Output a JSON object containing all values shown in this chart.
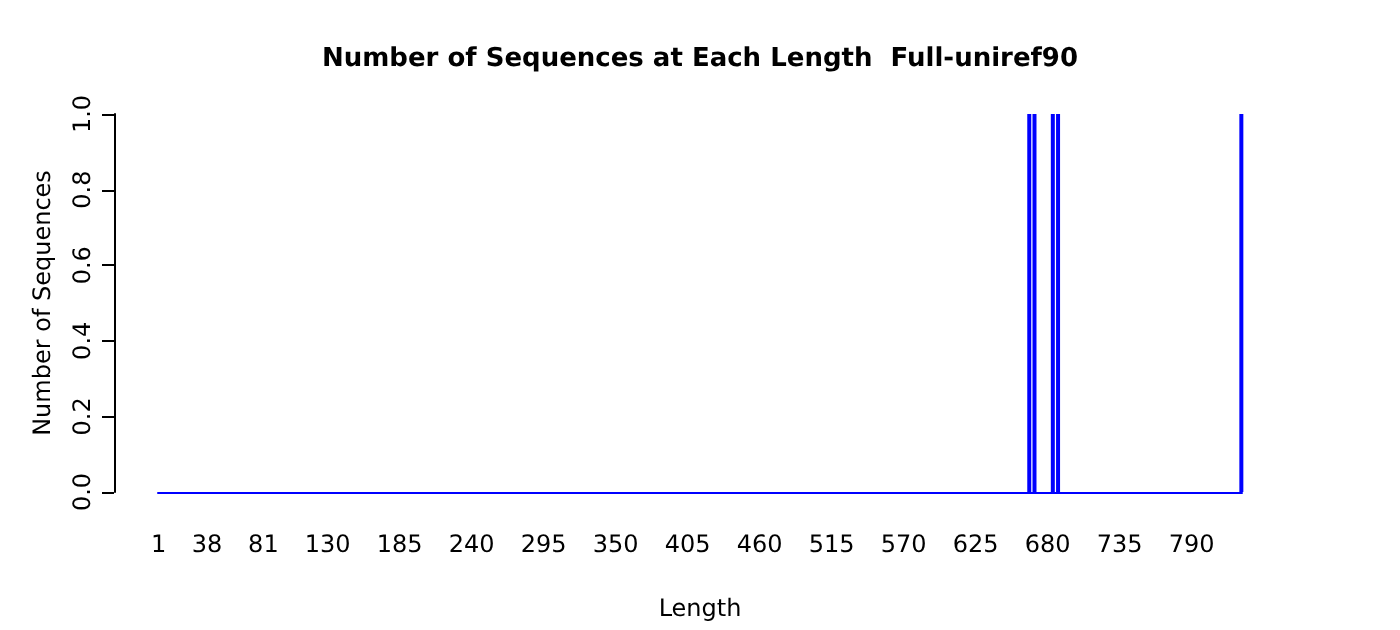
{
  "chart_data": {
    "type": "bar",
    "title": "Number of Sequences at Each Length  Full-uniref90",
    "xlabel": "Length",
    "ylabel": "Number of Sequences",
    "x": [
      666,
      670,
      684,
      688,
      828
    ],
    "values": [
      1,
      1,
      1,
      1,
      1
    ],
    "color": "#0000ff",
    "xlim": [
      0.5,
      828.5
    ],
    "xticks": [
      1,
      38,
      81,
      130,
      185,
      240,
      295,
      350,
      405,
      460,
      515,
      570,
      625,
      680,
      735,
      790
    ],
    "ylim": [
      0,
      1
    ],
    "yticks": [
      {
        "value": 0,
        "label": "0.0"
      },
      0.2,
      0.4,
      0.6,
      0.8,
      {
        "value": 1,
        "label": "1.0"
      }
    ],
    "grid": false
  }
}
